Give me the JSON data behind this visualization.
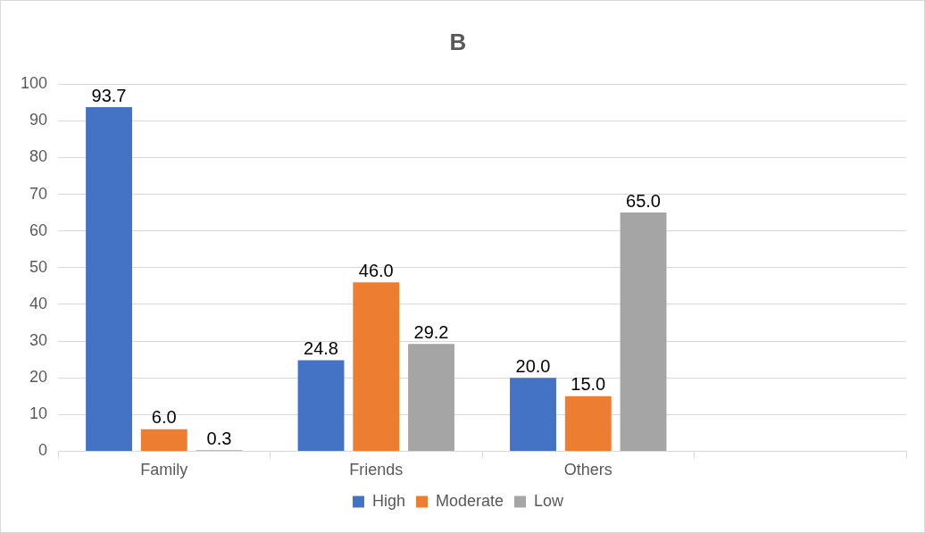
{
  "chart_data": {
    "type": "bar",
    "title": "B",
    "categories": [
      "Family",
      "Friends",
      "Others",
      null
    ],
    "series": [
      {
        "name": "High",
        "color": "#4472c4",
        "values": [
          93.7,
          24.8,
          20.0,
          null
        ],
        "value_labels": [
          "93.7",
          "24.8",
          "20.0",
          null
        ]
      },
      {
        "name": "Moderate",
        "color": "#ed7d31",
        "values": [
          6.0,
          46.0,
          15.0,
          null
        ],
        "value_labels": [
          "6.0",
          "46.0",
          "15.0",
          null
        ]
      },
      {
        "name": "Low",
        "color": "#a5a5a5",
        "values": [
          0.3,
          29.2,
          65.0,
          null
        ],
        "value_labels": [
          "0.3",
          "29.2",
          "65.0",
          null
        ]
      }
    ],
    "ylim": [
      0,
      100
    ],
    "yticks": [
      0,
      10,
      20,
      30,
      40,
      50,
      60,
      70,
      80,
      90,
      100
    ],
    "grid": "y",
    "legend": "bottom"
  }
}
